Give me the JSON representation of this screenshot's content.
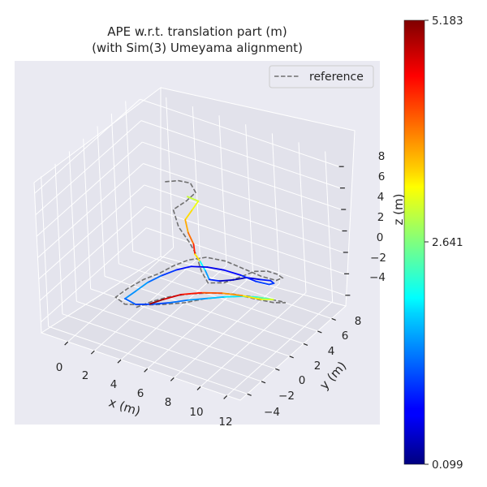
{
  "chart_data": {
    "type": "line",
    "plot_kind": "3d-trajectory",
    "title_line1": "APE w.r.t. translation part (m)",
    "title_line2": "(with Sim(3) Umeyama alignment)",
    "xlabel": "x (m)",
    "ylabel": "y (m)",
    "zlabel": "z (m)",
    "xticks": [
      "0",
      "2",
      "4",
      "6",
      "8",
      "10",
      "12"
    ],
    "yticks": [
      "−4",
      "−2",
      "0",
      "2",
      "4",
      "6",
      "8"
    ],
    "zticks": [
      "8",
      "6",
      "4",
      "2",
      "0",
      "−2",
      "−4"
    ],
    "xlim": [
      -2,
      13
    ],
    "ylim": [
      -5,
      10
    ],
    "zlim": [
      -5,
      9
    ],
    "grid": true,
    "legend_position": "top-right",
    "legend": {
      "label": "reference",
      "linestyle": "dashed",
      "color": "#707070"
    },
    "colorbar": {
      "colormap": "jet",
      "min": 0.099,
      "mid": 2.641,
      "max": 5.183,
      "ticks": [
        "5.183",
        "2.641",
        "0.099"
      ]
    },
    "reference_path": [
      [
        1.4,
        6.8,
        3.6
      ],
      [
        2.2,
        7.2,
        3.8
      ],
      [
        3.0,
        7.4,
        3.8
      ],
      [
        3.6,
        7.0,
        3.4
      ],
      [
        3.2,
        6.4,
        2.8
      ],
      [
        2.6,
        5.6,
        2.2
      ],
      [
        3.4,
        4.8,
        1.4
      ],
      [
        4.4,
        4.4,
        0.6
      ],
      [
        5.2,
        3.8,
        0.2
      ],
      [
        6.0,
        3.0,
        -0.6
      ],
      [
        6.8,
        2.4,
        -1.0
      ],
      [
        7.8,
        2.8,
        -0.8
      ],
      [
        8.6,
        3.6,
        -0.4
      ],
      [
        9.2,
        4.6,
        -0.2
      ],
      [
        9.6,
        5.6,
        -0.6
      ],
      [
        9.8,
        6.6,
        -1.4
      ],
      [
        9.6,
        7.6,
        -2.4
      ],
      [
        9.0,
        7.8,
        -3.0
      ],
      [
        8.2,
        7.2,
        -2.6
      ],
      [
        7.4,
        6.4,
        -1.8
      ],
      [
        6.4,
        5.6,
        -1.0
      ],
      [
        5.4,
        4.8,
        -0.6
      ],
      [
        4.6,
        3.8,
        -0.6
      ],
      [
        4.0,
        2.8,
        -0.8
      ],
      [
        3.4,
        1.8,
        -1.2
      ],
      [
        2.8,
        0.8,
        -1.4
      ],
      [
        2.2,
        -0.4,
        -1.8
      ],
      [
        1.8,
        -1.4,
        -2.2
      ],
      [
        2.6,
        -1.6,
        -2.4
      ],
      [
        3.8,
        -1.2,
        -2.2
      ],
      [
        5.0,
        -0.6,
        -2.0
      ],
      [
        6.2,
        0.2,
        -1.8
      ],
      [
        7.2,
        1.2,
        -1.6
      ],
      [
        8.2,
        2.2,
        -1.6
      ],
      [
        9.2,
        3.4,
        -1.8
      ],
      [
        10.0,
        4.6,
        -2.4
      ],
      [
        10.4,
        5.8,
        -3.2
      ],
      [
        10.2,
        6.8,
        -4.0
      ],
      [
        9.4,
        6.6,
        -4.2
      ],
      [
        8.4,
        5.8,
        -3.8
      ],
      [
        7.4,
        4.8,
        -3.2
      ],
      [
        6.4,
        3.6,
        -2.8
      ],
      [
        5.4,
        2.4,
        -2.6
      ],
      [
        4.4,
        1.2,
        -2.6
      ],
      [
        3.6,
        0.2,
        -2.8
      ],
      [
        3.0,
        -0.8,
        -3.0
      ]
    ],
    "estimate_path": [
      [
        3.4,
        6.2,
        3.4,
        2.9
      ],
      [
        4.0,
        6.6,
        3.0,
        3.1
      ],
      [
        3.8,
        6.0,
        2.4,
        3.3
      ],
      [
        3.6,
        5.4,
        1.8,
        3.6
      ],
      [
        4.0,
        5.0,
        1.0,
        3.8
      ],
      [
        4.6,
        4.6,
        0.4,
        4.2
      ],
      [
        5.0,
        4.0,
        0.0,
        4.6
      ],
      [
        5.6,
        3.6,
        -0.2,
        2.2
      ],
      [
        6.2,
        3.2,
        -0.6,
        1.8
      ],
      [
        6.8,
        2.6,
        -0.8,
        1.2
      ],
      [
        7.6,
        2.6,
        -0.6,
        0.6
      ],
      [
        8.4,
        3.0,
        -0.4,
        0.3
      ],
      [
        9.0,
        3.8,
        -0.4,
        0.4
      ],
      [
        9.6,
        4.6,
        -0.8,
        0.8
      ],
      [
        9.8,
        5.6,
        -1.4,
        0.9
      ],
      [
        9.6,
        6.4,
        -2.2,
        1.0
      ],
      [
        9.0,
        6.8,
        -2.8,
        1.1
      ],
      [
        8.2,
        6.4,
        -2.6,
        1.0
      ],
      [
        7.4,
        5.8,
        -2.0,
        0.8
      ],
      [
        6.6,
        5.0,
        -1.4,
        0.7
      ],
      [
        5.8,
        4.2,
        -1.0,
        0.6
      ],
      [
        5.0,
        3.4,
        -0.8,
        0.7
      ],
      [
        4.4,
        2.4,
        -0.8,
        0.9
      ],
      [
        3.8,
        1.4,
        -1.0,
        1.1
      ],
      [
        3.2,
        0.6,
        -1.4,
        1.4
      ],
      [
        2.8,
        -0.4,
        -1.8,
        1.6
      ],
      [
        2.4,
        -1.2,
        -2.2,
        1.3
      ],
      [
        3.2,
        -1.2,
        -2.4,
        1.1
      ],
      [
        4.2,
        -0.8,
        -2.2,
        1.0
      ],
      [
        5.2,
        -0.2,
        -2.0,
        1.2
      ],
      [
        6.2,
        0.6,
        -1.8,
        1.4
      ],
      [
        7.2,
        1.6,
        -1.8,
        1.6
      ],
      [
        8.0,
        2.4,
        -1.8,
        1.8
      ],
      [
        8.8,
        3.4,
        -2.0,
        2.0
      ],
      [
        9.4,
        4.4,
        -2.4,
        2.3
      ],
      [
        9.8,
        5.4,
        -3.0,
        2.6
      ],
      [
        9.6,
        6.2,
        -3.6,
        2.9
      ],
      [
        8.8,
        6.0,
        -3.8,
        3.2
      ],
      [
        7.8,
        5.2,
        -3.4,
        3.6
      ],
      [
        6.8,
        4.2,
        -3.0,
        4.0
      ],
      [
        5.8,
        3.2,
        -2.8,
        4.3
      ],
      [
        4.8,
        2.2,
        -2.8,
        4.6
      ],
      [
        4.0,
        1.2,
        -3.0,
        4.9
      ],
      [
        3.4,
        0.4,
        -3.2,
        5.183
      ]
    ]
  }
}
